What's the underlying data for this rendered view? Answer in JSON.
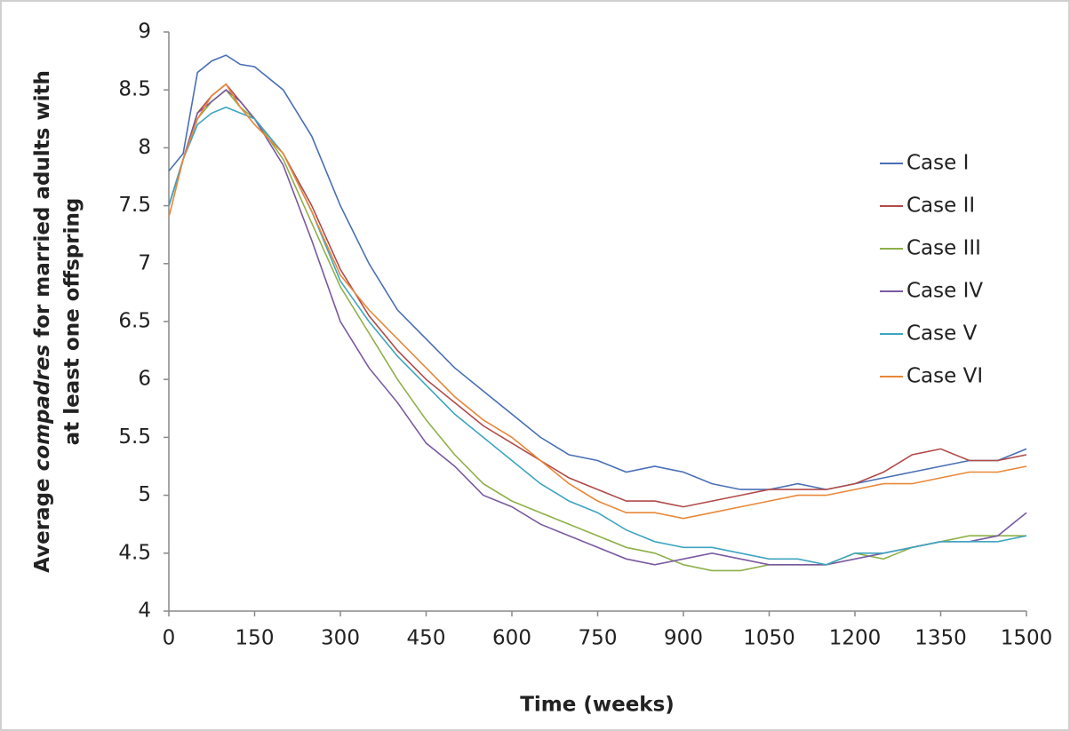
{
  "chart_data": {
    "type": "line",
    "xlabel": "Time (weeks)",
    "ylabel": [
      [
        "Average ",
        "compadres",
        " for married adults with"
      ],
      [
        "at least one offspring"
      ]
    ],
    "x": [
      0,
      25,
      50,
      75,
      100,
      125,
      150,
      200,
      250,
      300,
      350,
      400,
      450,
      500,
      550,
      600,
      650,
      700,
      750,
      800,
      850,
      900,
      950,
      1000,
      1050,
      1100,
      1150,
      1200,
      1250,
      1300,
      1350,
      1400,
      1450,
      1500
    ],
    "xlim": [
      0,
      1500
    ],
    "xticks": [
      0,
      150,
      300,
      450,
      600,
      750,
      900,
      1050,
      1200,
      1350,
      1500
    ],
    "ylim": [
      4,
      9
    ],
    "yticks": [
      4,
      4.5,
      5,
      5.5,
      6,
      6.5,
      7,
      7.5,
      8,
      8.5,
      9
    ],
    "series": [
      {
        "name": "Case I",
        "color": "#4a6fb5",
        "values": [
          7.8,
          7.95,
          8.65,
          8.75,
          8.8,
          8.72,
          8.7,
          8.5,
          8.1,
          7.5,
          7.0,
          6.6,
          6.35,
          6.1,
          5.9,
          5.7,
          5.5,
          5.35,
          5.3,
          5.2,
          5.25,
          5.2,
          5.1,
          5.05,
          5.05,
          5.1,
          5.05,
          5.1,
          5.15,
          5.2,
          5.25,
          5.3,
          5.3,
          5.4
        ]
      },
      {
        "name": "Case II",
        "color": "#b04a4a",
        "values": [
          7.5,
          7.9,
          8.3,
          8.45,
          8.55,
          8.4,
          8.25,
          7.95,
          7.5,
          6.95,
          6.55,
          6.25,
          6.0,
          5.8,
          5.6,
          5.45,
          5.3,
          5.15,
          5.05,
          4.95,
          4.95,
          4.9,
          4.95,
          5.0,
          5.05,
          5.05,
          5.05,
          5.1,
          5.2,
          5.35,
          5.4,
          5.3,
          5.3,
          5.35
        ]
      },
      {
        "name": "Case III",
        "color": "#8fb04a",
        "values": [
          7.5,
          7.9,
          8.25,
          8.4,
          8.5,
          8.35,
          8.25,
          7.9,
          7.35,
          6.8,
          6.4,
          6.0,
          5.65,
          5.35,
          5.1,
          4.95,
          4.85,
          4.75,
          4.65,
          4.55,
          4.5,
          4.4,
          4.35,
          4.35,
          4.4,
          4.4,
          4.4,
          4.5,
          4.45,
          4.55,
          4.6,
          4.65,
          4.65,
          4.65
        ]
      },
      {
        "name": "Case IV",
        "color": "#7a5aa0",
        "values": [
          7.5,
          7.9,
          8.3,
          8.4,
          8.5,
          8.4,
          8.25,
          7.85,
          7.2,
          6.5,
          6.1,
          5.8,
          5.45,
          5.25,
          5.0,
          4.9,
          4.75,
          4.65,
          4.55,
          4.45,
          4.4,
          4.45,
          4.5,
          4.45,
          4.4,
          4.4,
          4.4,
          4.45,
          4.5,
          4.55,
          4.6,
          4.6,
          4.65,
          4.85
        ]
      },
      {
        "name": "Case V",
        "color": "#3fa5c0",
        "values": [
          7.5,
          7.9,
          8.2,
          8.3,
          8.35,
          8.3,
          8.25,
          7.95,
          7.45,
          6.85,
          6.5,
          6.2,
          5.95,
          5.7,
          5.5,
          5.3,
          5.1,
          4.95,
          4.85,
          4.7,
          4.6,
          4.55,
          4.55,
          4.5,
          4.45,
          4.45,
          4.4,
          4.5,
          4.5,
          4.55,
          4.6,
          4.6,
          4.6,
          4.65
        ]
      },
      {
        "name": "Case VI",
        "color": "#e8883a",
        "values": [
          7.4,
          7.9,
          8.25,
          8.45,
          8.55,
          8.35,
          8.2,
          7.95,
          7.45,
          6.9,
          6.6,
          6.35,
          6.1,
          5.85,
          5.65,
          5.5,
          5.3,
          5.1,
          4.95,
          4.85,
          4.85,
          4.8,
          4.85,
          4.9,
          4.95,
          5.0,
          5.0,
          5.05,
          5.1,
          5.1,
          5.15,
          5.2,
          5.2,
          5.25
        ]
      }
    ]
  }
}
